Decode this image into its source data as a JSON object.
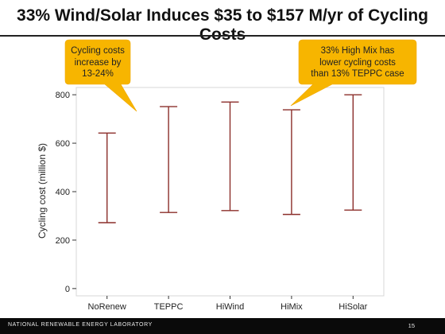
{
  "slide": {
    "title": "33% Wind/Solar Induces $35 to $157 M/yr of Cycling Costs"
  },
  "callouts": [
    {
      "text_lines": [
        "Cycling costs",
        "increase by",
        "13-24%"
      ]
    },
    {
      "text_lines": [
        "33% High Mix has",
        "lower cycling costs",
        "than 13% TEPPC case"
      ]
    }
  ],
  "colors": {
    "error_bar": "#8b2e2a",
    "callout_fill": "#f7b500",
    "panel_border": "#d7d7d7",
    "grid": "#e6e6e6",
    "footer_bg": "#0a0a0a"
  },
  "chart_data": {
    "type": "errorbar",
    "categories": [
      "NoRenew",
      "TEPPC",
      "HiWind",
      "HiMix",
      "HiSolar"
    ],
    "series": [
      {
        "ranges": [
          {
            "low": 272,
            "high": 642
          },
          {
            "low": 314,
            "high": 751
          },
          {
            "low": 322,
            "high": 770
          },
          {
            "low": 306,
            "high": 738
          },
          {
            "low": 324,
            "high": 800
          }
        ]
      }
    ],
    "ylabel": "Cycling cost (million $)",
    "xlabel": "",
    "yticks": [
      0,
      200,
      400,
      600,
      800
    ],
    "ylim": [
      -30,
      830
    ],
    "grid": false
  },
  "footer": {
    "organization": "NATIONAL RENEWABLE ENERGY LABORATORY",
    "page_number": "15"
  }
}
